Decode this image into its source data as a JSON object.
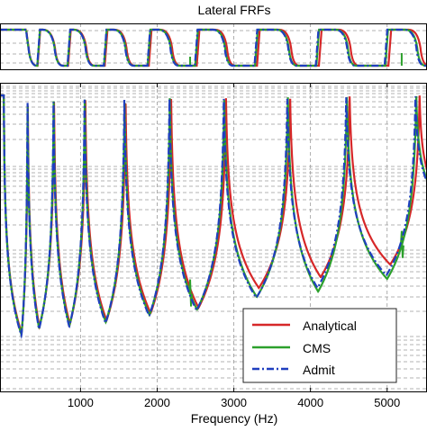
{
  "chart_data": [
    {
      "type": "line",
      "title": "Lateral FRFs",
      "xlabel": "",
      "ylabel": "",
      "xlim": [
        -50,
        5520
      ],
      "grid": true,
      "description_role": "phase panel",
      "steps_x": [
        310,
        650,
        1055,
        1575,
        2165,
        2875,
        3705,
        4475,
        5380
      ],
      "series": [
        {
          "name": "Analytical",
          "color": "#d62728"
        },
        {
          "name": "CMS",
          "color": "#2ca02c"
        },
        {
          "name": "Admit",
          "color": "#1f3fbf"
        }
      ]
    },
    {
      "type": "line",
      "title": "",
      "xlabel": "Frequency (Hz)",
      "ylabel": "",
      "xlim": [
        -50,
        5520
      ],
      "xticks": [
        1000,
        2000,
        3000,
        4000,
        5000
      ],
      "xtick_labels": [
        "1000",
        "2000",
        "3000",
        "4000",
        "5000"
      ],
      "grid": true,
      "legend_position": "bottom-right",
      "resonances_hz": [
        0,
        310,
        650,
        1055,
        1575,
        2165,
        2875,
        3705,
        4475,
        5380
      ],
      "antiresonances_hz": [
        230,
        460,
        855,
        1330,
        1900,
        2520,
        3300,
        4100,
        5000
      ],
      "series": [
        {
          "name": "Analytical",
          "color": "#d62728",
          "style": "solid"
        },
        {
          "name": "CMS",
          "color": "#2ca02c",
          "style": "solid",
          "spikes_hz": [
            2430,
            5190
          ]
        },
        {
          "name": "Admit",
          "color": "#1f3fbf",
          "style": "dash-dot"
        }
      ]
    }
  ]
}
